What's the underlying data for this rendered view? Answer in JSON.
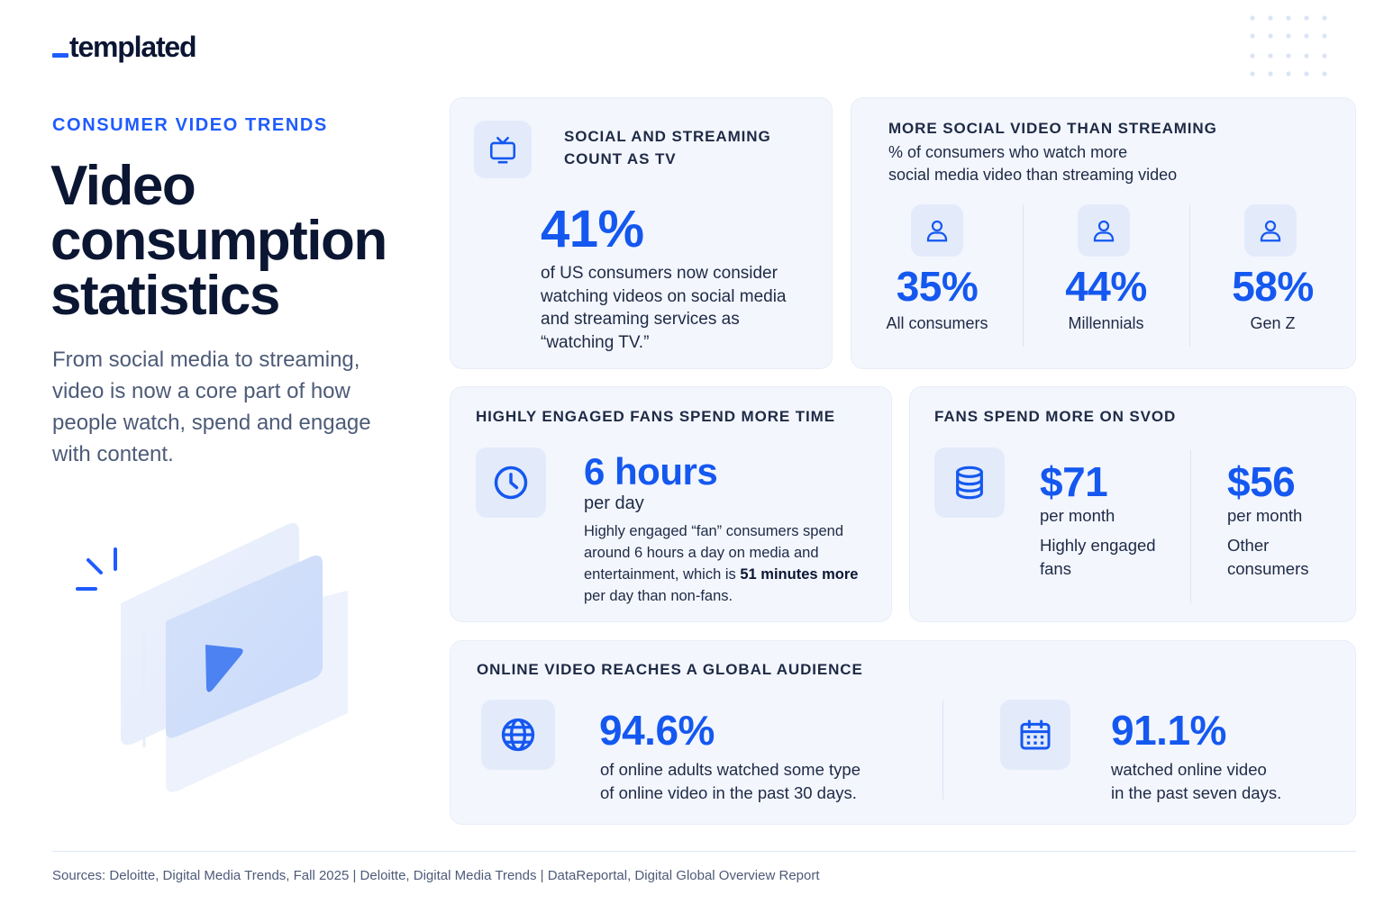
{
  "brand": {
    "logo_text": "templated"
  },
  "hero": {
    "kicker": "CONSUMER VIDEO TRENDS",
    "title_line1": "Video",
    "title_line2": "consumption",
    "title_line3": "statistics",
    "intro": "From social media to streaming, video is now a core part of how people watch, spend and engage with content."
  },
  "card_tv": {
    "label_line1": "SOCIAL AND STREAMING",
    "label_line2": "COUNT AS TV",
    "value": "41%",
    "text_line1": "of US consumers now consider",
    "text_line2": "watching videos on social media",
    "text_line3": "and streaming services as",
    "text_line4": "“watching TV.”",
    "icon": "tv-icon"
  },
  "card_social": {
    "title": "MORE SOCIAL VIDEO THAN STREAMING",
    "subtitle_line1": "% of consumers who watch more",
    "subtitle_line2": "social media video than streaming video",
    "stats": [
      {
        "value": "35%",
        "label": "All consumers",
        "icon": "user-icon"
      },
      {
        "value": "44%",
        "label": "Millennials",
        "icon": "user-icon"
      },
      {
        "value": "58%",
        "label": "Gen Z",
        "icon": "user-icon"
      }
    ]
  },
  "card_time": {
    "label": "HIGHLY ENGAGED FANS SPEND MORE TIME",
    "value": "6 hours",
    "unit": "per day",
    "text_line1": "Highly engaged “fan” consumers spend",
    "text_line2": "around 6 hours a day on media and",
    "text_line3_a": "entertainment, which is ",
    "text_line3_b": "51 minutes more",
    "text_line4": "per day than non-fans.",
    "icon": "clock-icon"
  },
  "card_svod": {
    "label": "FANS SPEND MORE ON SVOD",
    "icon": "database-icon",
    "stats": [
      {
        "value": "$71",
        "unit": "per month",
        "desc_line1": "Highly engaged",
        "desc_line2": "fans"
      },
      {
        "value": "$56",
        "unit": "per month",
        "desc_line1": "Other",
        "desc_line2": "consumers"
      }
    ]
  },
  "card_global": {
    "label": "ONLINE VIDEO REACHES A GLOBAL AUDIENCE",
    "stats": [
      {
        "value": "94.6%",
        "text_line1": "of online adults watched some type",
        "text_line2": "of online video in the past 30 days.",
        "icon": "globe-icon"
      },
      {
        "value": "91.1%",
        "text_line1": "watched online video",
        "text_line2": "in the past seven days.",
        "icon": "calendar-icon"
      }
    ]
  },
  "footer": {
    "sources": "Sources: Deloitte, Digital Media Trends, Fall 2025 | Deloitte, Digital Media Trends | DataReportal, Digital Global Overview Report"
  },
  "colors": {
    "accent": "#1558f0",
    "ink": "#0b1633",
    "muted": "#4d5b78",
    "card_bg": "#f3f6fd"
  }
}
